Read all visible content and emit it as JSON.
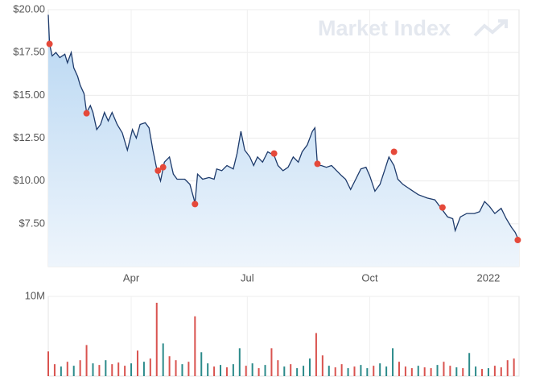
{
  "chart_data": [
    {
      "type": "line",
      "watermark": "Market Index",
      "x": [
        0,
        1,
        3,
        6,
        9,
        13,
        15,
        18,
        20,
        23,
        25,
        28,
        30,
        33,
        35,
        38,
        41,
        44,
        47,
        50,
        54,
        58,
        62,
        66,
        69,
        72,
        76,
        79,
        82,
        85,
        88,
        91,
        95,
        98,
        101,
        107,
        111,
        114,
        115,
        117,
        121,
        126,
        130,
        132,
        136,
        140,
        145,
        148,
        151,
        154,
        158,
        161,
        164,
        168,
        172,
        177,
        180,
        184,
        188,
        192,
        196,
        199,
        203,
        207,
        209,
        211,
        214,
        218,
        222,
        226,
        230,
        233,
        237,
        241,
        245,
        249,
        252,
        256,
        260,
        264,
        267,
        271,
        274,
        278,
        284,
        290,
        297,
        303,
        308,
        313,
        317,
        319,
        323,
        328,
        334,
        338,
        342,
        346,
        350,
        355,
        359,
        363,
        366,
        369
      ],
      "values": [
        19.7,
        18.0,
        17.3,
        17.5,
        17.2,
        17.4,
        16.9,
        17.5,
        16.6,
        16.1,
        15.6,
        15.1,
        14.0,
        14.4,
        14.0,
        13.0,
        13.3,
        14.0,
        13.5,
        14.0,
        13.3,
        12.8,
        11.8,
        13.0,
        12.5,
        13.3,
        13.4,
        13.1,
        11.8,
        10.7,
        10.0,
        11.1,
        11.4,
        10.4,
        10.1,
        10.1,
        9.8,
        9.0,
        8.7,
        10.4,
        10.1,
        10.2,
        10.1,
        10.7,
        10.6,
        10.9,
        10.7,
        11.6,
        12.9,
        11.8,
        11.4,
        10.9,
        11.4,
        11.1,
        11.7,
        11.5,
        10.9,
        10.6,
        10.8,
        11.4,
        11.1,
        11.7,
        12.1,
        12.9,
        13.1,
        10.9,
        10.9,
        10.8,
        10.9,
        10.6,
        10.3,
        10.1,
        9.5,
        10.1,
        10.7,
        10.8,
        10.3,
        9.4,
        9.8,
        10.7,
        11.4,
        10.9,
        10.1,
        9.8,
        9.5,
        9.2,
        9.0,
        8.9,
        8.4,
        7.9,
        7.8,
        7.1,
        7.9,
        8.1,
        8.1,
        8.2,
        8.8,
        8.5,
        8.1,
        8.4,
        7.8,
        7.3,
        7.0,
        6.5
      ],
      "color": "#1d3a6b",
      "fill": "#c4def5",
      "markers": {
        "x": [
          1,
          30,
          86,
          90,
          115,
          177,
          211,
          271,
          309,
          368
        ],
        "values": [
          18.0,
          13.95,
          10.6,
          10.8,
          8.65,
          11.6,
          11.0,
          11.7,
          8.45,
          6.55
        ],
        "color": "#e5493a"
      },
      "xlim": [
        0,
        369
      ],
      "xticks": [
        {
          "value": 65,
          "label": "Apr"
        },
        {
          "value": 156,
          "label": "Jul"
        },
        {
          "value": 252,
          "label": "Oct"
        },
        {
          "value": 345,
          "label": "2022"
        }
      ],
      "ylim": [
        5,
        20
      ],
      "yticks": [
        {
          "value": 7.5,
          "label": "$7.50"
        },
        {
          "value": 10,
          "label": "$10.00"
        },
        {
          "value": 12.5,
          "label": "$12.50"
        },
        {
          "value": 15,
          "label": "$15.00"
        },
        {
          "value": 17.5,
          "label": "$17.50"
        },
        {
          "value": 20,
          "label": "$20.00"
        }
      ],
      "grid": true
    },
    {
      "type": "bar",
      "x": [
        0,
        5,
        10,
        15,
        20,
        25,
        30,
        35,
        40,
        45,
        50,
        55,
        60,
        65,
        70,
        75,
        80,
        85,
        90,
        95,
        100,
        105,
        110,
        115,
        120,
        125,
        130,
        135,
        140,
        145,
        150,
        155,
        160,
        165,
        170,
        175,
        180,
        185,
        190,
        195,
        200,
        205,
        210,
        215,
        220,
        225,
        230,
        235,
        240,
        245,
        250,
        255,
        260,
        265,
        270,
        275,
        280,
        285,
        290,
        295,
        300,
        305,
        310,
        315,
        320,
        325,
        330,
        335,
        340,
        345,
        350,
        355,
        360,
        365
      ],
      "values": [
        3100000,
        1500000,
        1200000,
        1800000,
        1300000,
        2000000,
        3900000,
        1600000,
        1400000,
        2000000,
        1500000,
        1700000,
        1300000,
        1600000,
        3200000,
        1800000,
        2200000,
        9200000,
        4100000,
        2500000,
        2000000,
        1500000,
        1800000,
        7500000,
        3000000,
        1600000,
        1200000,
        1400000,
        1100000,
        1500000,
        3500000,
        1300000,
        1600000,
        1000000,
        1400000,
        3500000,
        2000000,
        1200000,
        1500000,
        1000000,
        1300000,
        2200000,
        5400000,
        2600000,
        1300000,
        1100000,
        1500000,
        1000000,
        1200000,
        1400000,
        1000000,
        1300000,
        1600000,
        1200000,
        3500000,
        1800000,
        1200000,
        1000000,
        1300000,
        1100000,
        1000000,
        1400000,
        1800000,
        1300000,
        1100000,
        1000000,
        2900000,
        1200000,
        900000,
        1000000,
        1300000,
        1100000,
        2000000,
        2200000
      ],
      "colors": [
        "#d9534f",
        "#d9534f",
        "#2b8a8a",
        "#d9534f",
        "#2b8a8a",
        "#d9534f",
        "#d9534f",
        "#2b8a8a",
        "#d9534f",
        "#2b8a8a",
        "#d9534f",
        "#d9534f",
        "#d9534f",
        "#2b8a8a",
        "#d9534f",
        "#2b8a8a",
        "#d9534f",
        "#d9534f",
        "#2b8a8a",
        "#d9534f",
        "#d9534f",
        "#2b8a8a",
        "#d9534f",
        "#d9534f",
        "#2b8a8a",
        "#2b8a8a",
        "#d9534f",
        "#2b8a8a",
        "#d9534f",
        "#2b8a8a",
        "#2b8a8a",
        "#d9534f",
        "#2b8a8a",
        "#d9534f",
        "#2b8a8a",
        "#d9534f",
        "#d9534f",
        "#2b8a8a",
        "#d9534f",
        "#2b8a8a",
        "#2b8a8a",
        "#2b8a8a",
        "#d9534f",
        "#d9534f",
        "#2b8a8a",
        "#d9534f",
        "#d9534f",
        "#2b8a8a",
        "#d9534f",
        "#2b8a8a",
        "#2b8a8a",
        "#d9534f",
        "#2b8a8a",
        "#2b8a8a",
        "#2b8a8a",
        "#d9534f",
        "#d9534f",
        "#d9534f",
        "#2b8a8a",
        "#d9534f",
        "#d9534f",
        "#2b8a8a",
        "#d9534f",
        "#d9534f",
        "#2b8a8a",
        "#d9534f",
        "#2b8a8a",
        "#2b8a8a",
        "#d9534f",
        "#2b8a8a",
        "#d9534f",
        "#d9534f",
        "#d9534f",
        "#d9534f"
      ],
      "xlim": [
        0,
        369
      ],
      "xticks": [
        {
          "value": 65,
          "label": "Apr"
        },
        {
          "value": 156,
          "label": "Jul"
        },
        {
          "value": 252,
          "label": "Oct"
        },
        {
          "value": 345,
          "label": "2022"
        }
      ],
      "ylim": [
        0,
        10000000
      ],
      "yticks": [
        {
          "value": 10000000,
          "label": "10M"
        }
      ],
      "grid": true
    }
  ]
}
